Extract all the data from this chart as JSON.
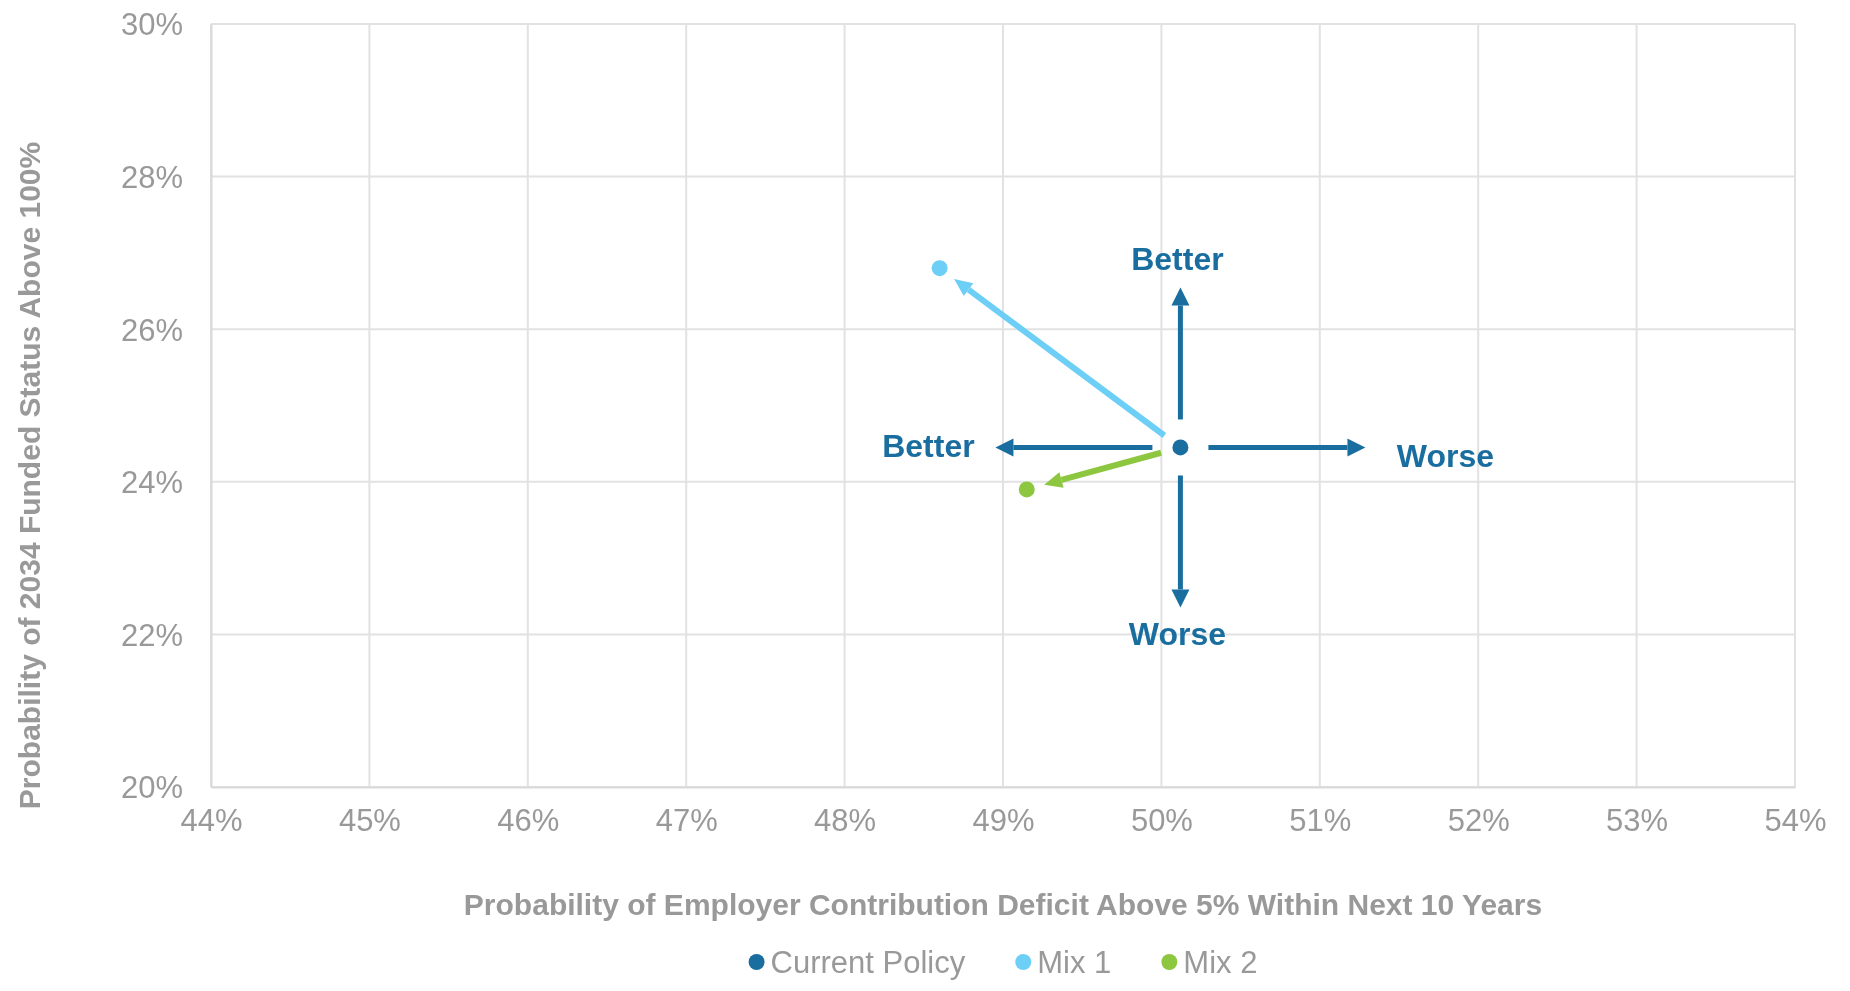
{
  "chart_data": {
    "type": "scatter",
    "xlabel": "Probability of Employer Contribution Deficit Above 5% Within Next 10 Years",
    "ylabel": "Probability of 2034 Funded Status Above 100%",
    "series": [
      {
        "name": "Current Policy",
        "color": "#1a6e9f",
        "x": [
          50.12
        ],
        "values": [
          24.45
        ]
      },
      {
        "name": "Mix 1",
        "color": "#6dcff6",
        "x": [
          48.6
        ],
        "values": [
          26.8
        ]
      },
      {
        "name": "Mix 2",
        "color": "#8dc63f",
        "x": [
          49.15
        ],
        "values": [
          23.9
        ]
      }
    ],
    "xlim": [
      44,
      54
    ],
    "xticks": [
      {
        "value": 44,
        "label": "44%"
      },
      {
        "value": 45,
        "label": "45%"
      },
      {
        "value": 46,
        "label": "46%"
      },
      {
        "value": 47,
        "label": "47%"
      },
      {
        "value": 48,
        "label": "48%"
      },
      {
        "value": 49,
        "label": "49%"
      },
      {
        "value": 50,
        "label": "50%"
      },
      {
        "value": 51,
        "label": "51%"
      },
      {
        "value": 52,
        "label": "52%"
      },
      {
        "value": 53,
        "label": "53%"
      },
      {
        "value": 54,
        "label": "54%"
      }
    ],
    "ylim": [
      20,
      30
    ],
    "yticks": [
      {
        "value": 20,
        "label": "20%"
      },
      {
        "value": 22,
        "label": "22%"
      },
      {
        "value": 24,
        "label": "24%"
      },
      {
        "value": 26,
        "label": "26%"
      },
      {
        "value": 28,
        "label": "28%"
      },
      {
        "value": 30,
        "label": "30%"
      }
    ],
    "grid": true,
    "legend": "bottom",
    "marker": "circle",
    "annotations": [
      "Better",
      "Worse",
      "Better",
      "Worse"
    ]
  }
}
